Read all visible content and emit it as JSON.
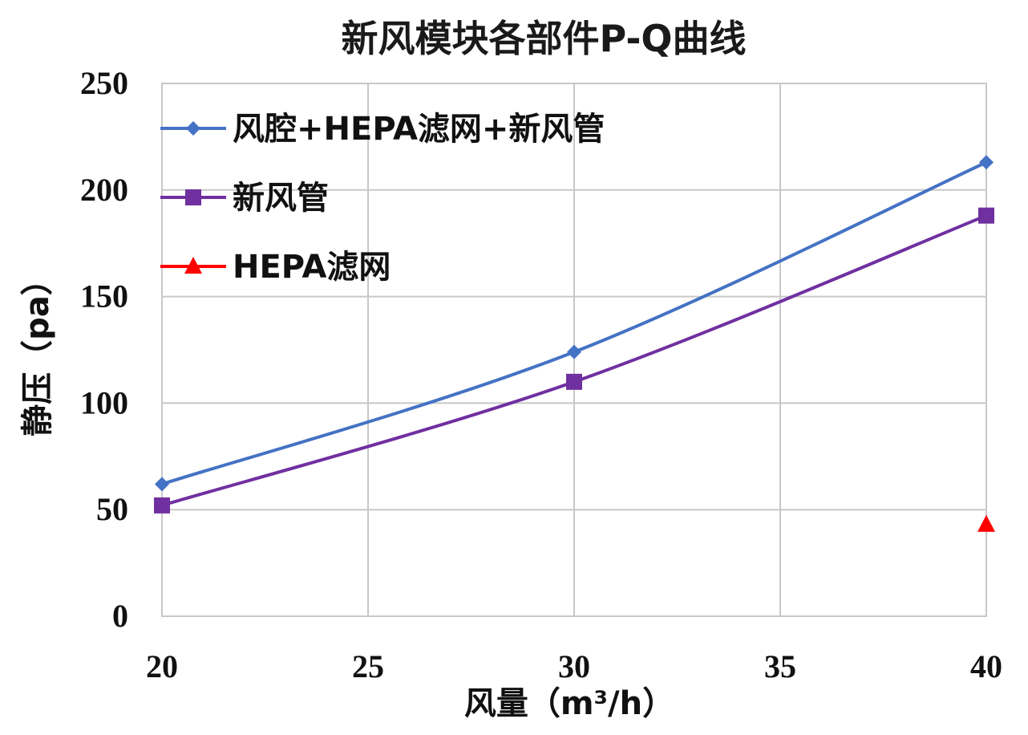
{
  "chart_data": {
    "type": "line",
    "title": "新风模块各部件P-Q曲线",
    "xlabel": "风量（m³/h）",
    "ylabel": "静压（pa）",
    "xlim": [
      20,
      40
    ],
    "ylim": [
      0,
      250
    ],
    "xticks": [
      20,
      25,
      30,
      35,
      40
    ],
    "yticks": [
      0,
      50,
      100,
      150,
      200,
      250
    ],
    "grid": true,
    "smooth": true,
    "legend_position": "top-left",
    "series": [
      {
        "name": "风腔+HEPA滤网+新风管",
        "color": "#4472c4",
        "marker": "diamond",
        "x": [
          20,
          30,
          40
        ],
        "y": [
          62,
          124,
          213
        ]
      },
      {
        "name": "新风管",
        "color": "#7030a0",
        "marker": "square",
        "x": [
          20,
          30,
          40
        ],
        "y": [
          52,
          110,
          188
        ]
      },
      {
        "name": "HEPA滤网",
        "color": "#ff0000",
        "marker": "triangle",
        "x": [
          40
        ],
        "y": [
          43
        ]
      }
    ]
  }
}
